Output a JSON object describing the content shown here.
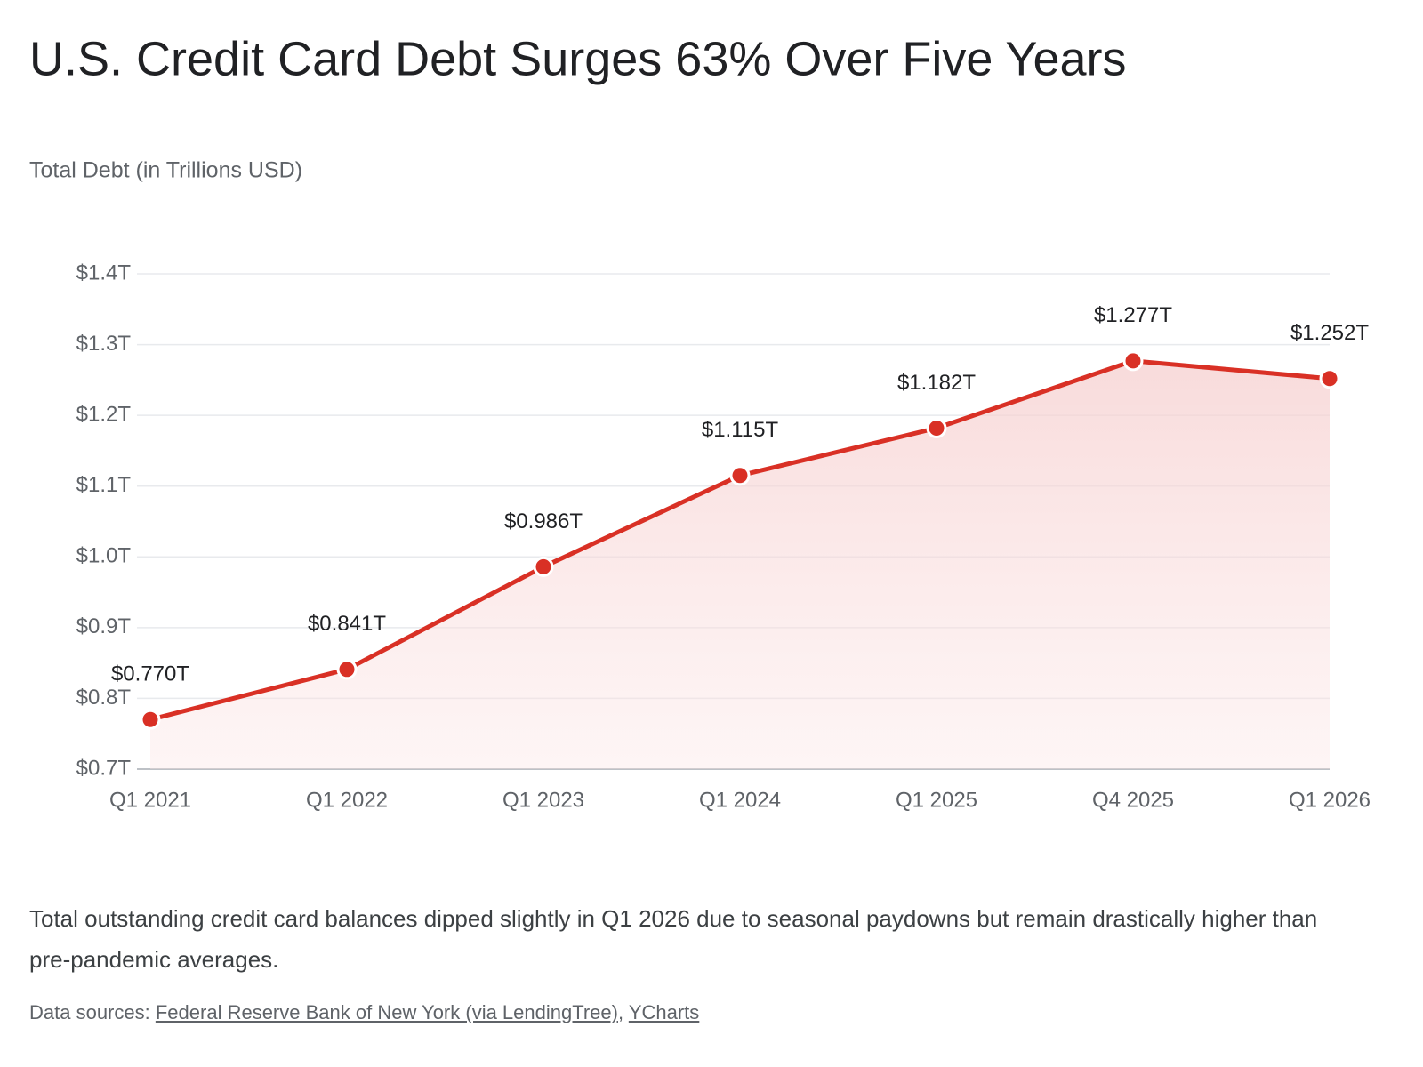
{
  "chart_data": {
    "type": "line",
    "title": "U.S. Credit Card Debt Surges 63% Over Five Years",
    "subtitle": "Total Debt (in Trillions USD)",
    "categories": [
      "Q1 2021",
      "Q1 2022",
      "Q1 2023",
      "Q1 2024",
      "Q1 2025",
      "Q4 2025",
      "Q1 2026"
    ],
    "values": [
      0.77,
      0.841,
      0.986,
      1.115,
      1.182,
      1.277,
      1.252
    ],
    "value_labels": [
      "$0.770T",
      "$0.841T",
      "$0.986T",
      "$1.115T",
      "$1.182T",
      "$1.277T",
      "$1.252T"
    ],
    "color": "#d93025",
    "ylim": [
      0.7,
      1.4
    ],
    "yticks": [
      {
        "value": 0.7,
        "label": "$0.7T"
      },
      {
        "value": 0.8,
        "label": "$0.8T"
      },
      {
        "value": 0.9,
        "label": "$0.9T"
      },
      {
        "value": 1.0,
        "label": "$1.0T"
      },
      {
        "value": 1.1,
        "label": "$1.1T"
      },
      {
        "value": 1.2,
        "label": "$1.2T"
      },
      {
        "value": 1.3,
        "label": "$1.3T"
      },
      {
        "value": 1.4,
        "label": "$1.4T"
      }
    ],
    "grid": true
  },
  "description": "Total outstanding credit card balances dipped slightly in Q1 2026 due to seasonal paydowns but remain drastically higher than pre-pandemic averages.",
  "sources": {
    "label": "Data sources:",
    "links": [
      "Federal Reserve Bank of New York (via LendingTree)",
      "YCharts"
    ],
    "separator": ","
  }
}
